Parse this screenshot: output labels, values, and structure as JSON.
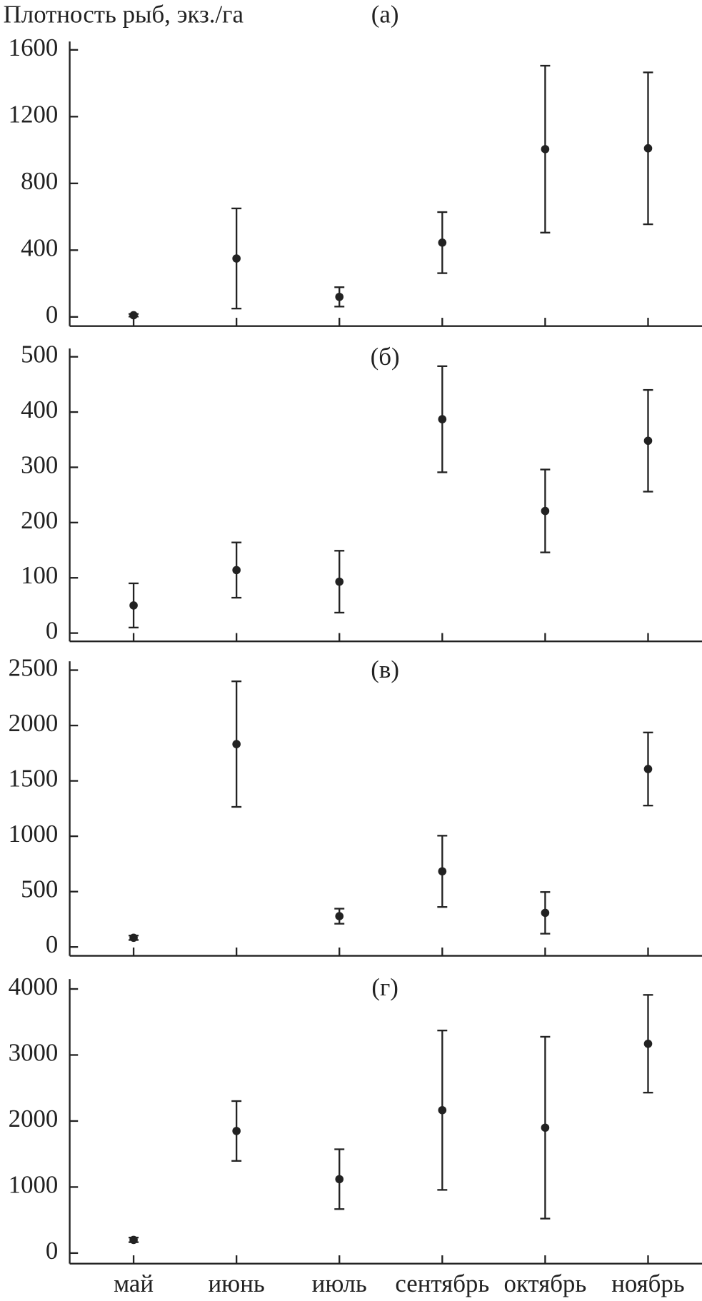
{
  "chart_data": [
    {
      "type": "errorbar",
      "title": "Плотность рыб, экз./га",
      "annotation": "(а)",
      "values": [
        10,
        350,
        120,
        445,
        1005,
        1010
      ],
      "errors": [
        8,
        300,
        58,
        183,
        500,
        455
      ],
      "ylim": [
        -55,
        1650
      ],
      "yticks": [
        0,
        400,
        800,
        1200,
        1600
      ],
      "color": "#222222"
    },
    {
      "type": "errorbar",
      "annotation": "(б)",
      "values": [
        50,
        114,
        93,
        387,
        221,
        348
      ],
      "errors": [
        40,
        50,
        56,
        96,
        75,
        92
      ],
      "ylim": [
        -15,
        515
      ],
      "yticks": [
        0,
        100,
        200,
        300,
        400,
        500
      ],
      "color": "#222222"
    },
    {
      "type": "errorbar",
      "annotation": "(в)",
      "values": [
        83,
        1832,
        278,
        683,
        308,
        1607
      ],
      "errors": [
        20,
        567,
        68,
        322,
        188,
        330
      ],
      "ylim": [
        -80,
        2580
      ],
      "yticks": [
        0,
        500,
        1000,
        1500,
        2000,
        2500
      ],
      "color": "#222222"
    },
    {
      "type": "errorbar",
      "annotation": "(г)",
      "categories": [
        "май",
        "июнь",
        "июль",
        "сентябрь",
        "октябрь",
        "ноябрь"
      ],
      "values": [
        200,
        1849,
        1119,
        2164,
        1899,
        3170
      ],
      "errors": [
        35,
        453,
        453,
        1207,
        1377,
        740
      ],
      "ylim": [
        -160,
        4150
      ],
      "yticks": [
        0,
        1000,
        2000,
        3000,
        4000
      ],
      "color": "#222222"
    }
  ]
}
